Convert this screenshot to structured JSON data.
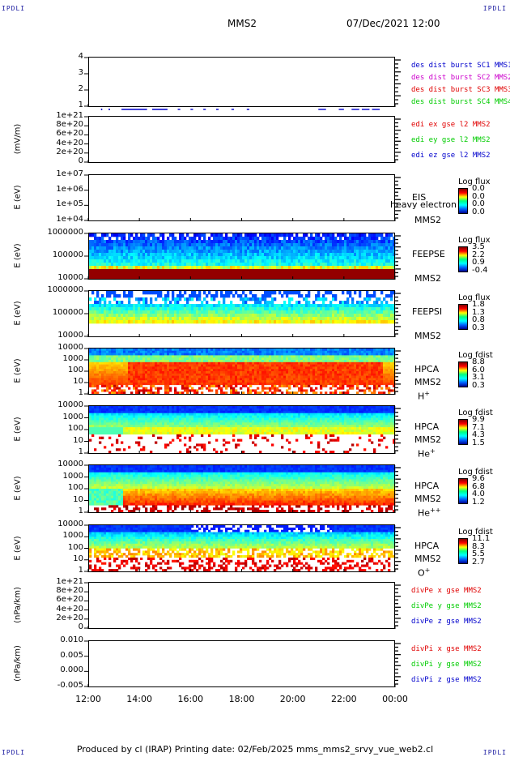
{
  "header": {
    "left_tag": "IPDLI",
    "right_tag": "IPDLI",
    "spacecraft": "MMS2",
    "datetime": "07/Dec/2021 12:00"
  },
  "footer": {
    "left_tag": "IPDLI",
    "right_tag": "IPDLI",
    "text": "Produced by cl (IRAP)   Printing date: 02/Feb/2025   mms_mms2_srvy_vue_web2.cl"
  },
  "x_axis": {
    "ticks": [
      "12:00",
      "14:00",
      "16:00",
      "18:00",
      "20:00",
      "22:00",
      "00:00"
    ]
  },
  "colors": {
    "red": "#e00000",
    "green": "#00cc00",
    "blue": "#0000cc",
    "magenta": "#cc00cc"
  },
  "chart_data": [
    {
      "type": "line",
      "id": "burst",
      "yticks": [
        "4",
        "3",
        "2",
        "1"
      ],
      "legend": [
        {
          "text": "des dist burst SC1 MMS1",
          "color": "#0000cc"
        },
        {
          "text": "des dist burst SC2 MMS2",
          "color": "#cc00cc"
        },
        {
          "text": "des dist burst SC3 MMS3",
          "color": "#e00000"
        },
        {
          "text": "des dist burst SC4 MMS4",
          "color": "#00cc00"
        }
      ],
      "segments_hours": [
        [
          13.3,
          14.3
        ],
        [
          14.5,
          15.1
        ],
        [
          15.5,
          15.6
        ],
        [
          16.0,
          16.1
        ],
        [
          16.5,
          16.6
        ],
        [
          17.0,
          17.1
        ],
        [
          17.6,
          17.7
        ],
        [
          18.2,
          18.3
        ],
        [
          21.0,
          21.3
        ],
        [
          21.8,
          22.0
        ],
        [
          22.3,
          22.6
        ],
        [
          22.7,
          23.0
        ],
        [
          23.1,
          23.4
        ]
      ],
      "ylim": [
        1,
        4
      ]
    },
    {
      "type": "line",
      "id": "edi",
      "ylabel": "(mV/m)",
      "yticks": [
        "1e+21",
        "8e+20",
        "6e+20",
        "4e+20",
        "2e+20",
        "0"
      ],
      "legend": [
        {
          "text": "edi ex gse l2 MMS2",
          "color": "#e00000"
        },
        {
          "text": "edi ey gse l2 MMS2",
          "color": "#00cc00"
        },
        {
          "text": "edi ez gse l2 MMS2",
          "color": "#0000cc"
        }
      ],
      "ylim": [
        0,
        1e+21
      ]
    },
    {
      "type": "heatmap",
      "id": "eis",
      "ylabel": "E (eV)",
      "yticks": [
        "1e+07",
        "1e+06",
        "1e+05",
        "1e+04"
      ],
      "instrument": "EIS",
      "spacecraft": "MMS2",
      "overlay_text": "heavy electron to",
      "cbar_title": "Log flux",
      "cbar_ticks": [
        "0.0",
        "0.0",
        "0.0",
        "0.0"
      ]
    },
    {
      "type": "heatmap",
      "id": "feepse",
      "ylabel": "E (eV)",
      "yticks": [
        "1000000",
        "100000",
        "10000"
      ],
      "instrument": "FEEPSE",
      "spacecraft": "MMS2",
      "cbar_title": "Log flux",
      "cbar_ticks": [
        "3.5",
        "2.2",
        "0.9",
        "-0.4"
      ]
    },
    {
      "type": "heatmap",
      "id": "feepsi",
      "ylabel": "E (eV)",
      "yticks": [
        "1000000",
        "100000",
        "10000"
      ],
      "instrument": "FEEPSI",
      "spacecraft": "MMS2",
      "cbar_title": "Log flux",
      "cbar_ticks": [
        "1.8",
        "1.3",
        "0.8",
        "0.3"
      ]
    },
    {
      "type": "heatmap",
      "id": "hpca-h",
      "ylabel": "E (eV)",
      "yticks": [
        "10000",
        "1000",
        "100",
        "10",
        "1"
      ],
      "instrument": "HPCA",
      "spacecraft": "MMS2",
      "species": "H",
      "charge": "+",
      "cbar_title": "Log fdist",
      "cbar_ticks": [
        "8.8",
        "6.0",
        "3.1",
        "0.3"
      ]
    },
    {
      "type": "heatmap",
      "id": "hpca-he1",
      "ylabel": "E (eV)",
      "yticks": [
        "10000",
        "1000",
        "100",
        "10",
        "1"
      ],
      "instrument": "HPCA",
      "spacecraft": "MMS2",
      "species": "He",
      "charge": "+",
      "cbar_title": "Log fdist",
      "cbar_ticks": [
        "9.9",
        "7.1",
        "4.3",
        "1.5"
      ]
    },
    {
      "type": "heatmap",
      "id": "hpca-he2",
      "ylabel": "E (eV)",
      "yticks": [
        "10000",
        "1000",
        "100",
        "10",
        "1"
      ],
      "instrument": "HPCA",
      "spacecraft": "MMS2",
      "species": "He",
      "charge": "++",
      "cbar_title": "Log fdist",
      "cbar_ticks": [
        "9.6",
        "6.8",
        "4.0",
        "1.2"
      ]
    },
    {
      "type": "heatmap",
      "id": "hpca-o",
      "ylabel": "E (eV)",
      "yticks": [
        "10000",
        "1000",
        "100",
        "10",
        "1"
      ],
      "instrument": "HPCA",
      "spacecraft": "MMS2",
      "species": "O",
      "charge": "+",
      "cbar_title": "Log fdist",
      "cbar_ticks": [
        "11.1",
        "8.3",
        "5.5",
        "2.7"
      ]
    },
    {
      "type": "line",
      "id": "divpe",
      "ylabel": "(nPa/km)",
      "yticks": [
        "1e+21",
        "8e+20",
        "6e+20",
        "4e+20",
        "2e+20",
        "0"
      ],
      "legend": [
        {
          "text": "divPe x gse MMS2",
          "color": "#e00000"
        },
        {
          "text": "divPe y gse MMS2",
          "color": "#00cc00"
        },
        {
          "text": "divPe z gse MMS2",
          "color": "#0000cc"
        }
      ],
      "ylim": [
        0,
        1e+21
      ]
    },
    {
      "type": "line",
      "id": "divpi",
      "ylabel": "(nPa/km)",
      "yticks": [
        "0.010",
        "0.005",
        "0.000",
        "-0.005"
      ],
      "legend": [
        {
          "text": "divPi x gse MMS2",
          "color": "#e00000"
        },
        {
          "text": "divPi y gse MMS2",
          "color": "#00cc00"
        },
        {
          "text": "divPi z gse MMS2",
          "color": "#0000cc"
        }
      ],
      "ylim": [
        -0.0075,
        0.012
      ]
    }
  ]
}
